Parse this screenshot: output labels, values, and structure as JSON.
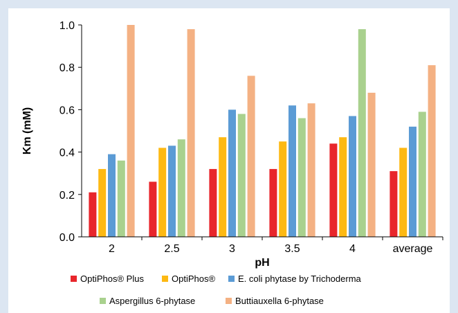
{
  "chart_data": {
    "type": "bar",
    "title": "",
    "xlabel": "pH",
    "ylabel": "Km (mM)",
    "categories": [
      "2",
      "2.5",
      "3",
      "3.5",
      "4",
      "average"
    ],
    "ylim": [
      0,
      1.0
    ],
    "yticks": [
      "0.0",
      "0.2",
      "0.4",
      "0.6",
      "0.8",
      "1.0"
    ],
    "grid": false,
    "legend_position": "bottom",
    "series": [
      {
        "name": "OptiPhos® Plus",
        "color": "#e8262b",
        "values": [
          0.21,
          0.26,
          0.32,
          0.32,
          0.44,
          0.31
        ]
      },
      {
        "name": "OptiPhos®",
        "color": "#fdb913",
        "values": [
          0.32,
          0.42,
          0.47,
          0.45,
          0.47,
          0.42
        ]
      },
      {
        "name": "E. coli phytase by Trichoderma",
        "color": "#5b9bd5",
        "values": [
          0.39,
          0.43,
          0.6,
          0.62,
          0.57,
          0.52
        ]
      },
      {
        "name": "Aspergillus 6-phytase",
        "color": "#a9d18e",
        "values": [
          0.36,
          0.46,
          0.58,
          0.56,
          0.98,
          0.59
        ]
      },
      {
        "name": "Buttiauxella 6-phytase",
        "color": "#f4b183",
        "values": [
          1.0,
          0.98,
          0.76,
          0.63,
          0.68,
          0.81
        ]
      }
    ]
  }
}
